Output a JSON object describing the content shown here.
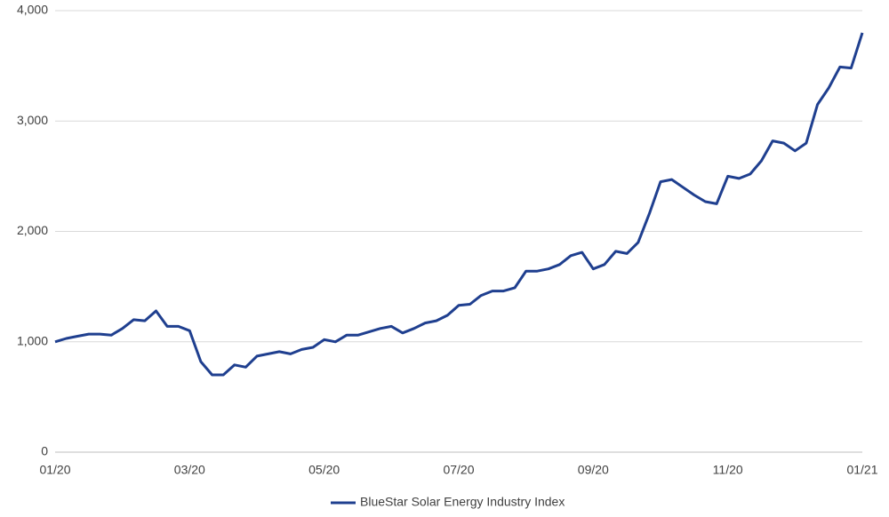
{
  "chart_data": {
    "type": "line",
    "categories": [
      "01/20",
      null,
      null,
      null,
      null,
      null,
      null,
      null,
      null,
      null,
      null,
      null,
      "03/20",
      null,
      null,
      null,
      null,
      null,
      null,
      null,
      null,
      null,
      null,
      null,
      "05/20",
      null,
      null,
      null,
      null,
      null,
      null,
      null,
      null,
      null,
      null,
      null,
      "07/20",
      null,
      null,
      null,
      null,
      null,
      null,
      null,
      null,
      null,
      null,
      null,
      "09/20",
      null,
      null,
      null,
      null,
      null,
      null,
      null,
      null,
      null,
      null,
      null,
      "11/20",
      null,
      null,
      null,
      null,
      null,
      null,
      null,
      null,
      null,
      null,
      null,
      "01/21"
    ],
    "series": [
      {
        "name": "BlueStar Solar Energy Industry Index",
        "color": "#1f3f8f",
        "values": [
          1000,
          1030,
          1050,
          1070,
          1070,
          1060,
          1120,
          1200,
          1190,
          1280,
          1140,
          1140,
          1100,
          820,
          700,
          700,
          790,
          770,
          870,
          890,
          910,
          890,
          930,
          950,
          1020,
          1000,
          1060,
          1060,
          1090,
          1120,
          1140,
          1080,
          1120,
          1170,
          1190,
          1240,
          1330,
          1340,
          1420,
          1460,
          1460,
          1490,
          1640,
          1640,
          1660,
          1700,
          1780,
          1810,
          1660,
          1700,
          1820,
          1800,
          1900,
          2160,
          2450,
          2470,
          2400,
          2330,
          2270,
          2250,
          2500,
          2480,
          2520,
          2640,
          2820,
          2800,
          2730,
          2800,
          3150,
          3300,
          3490,
          3480,
          3800
        ]
      }
    ],
    "ylim": [
      0,
      4000
    ],
    "yticks": [
      0,
      {
        "value": 1000,
        "label": "1,000"
      },
      {
        "value": 2000,
        "label": "2,000"
      },
      {
        "value": 3000,
        "label": "3,000"
      },
      {
        "value": 4000,
        "label": "4,000"
      }
    ],
    "grid": true,
    "legend": "bottom"
  }
}
